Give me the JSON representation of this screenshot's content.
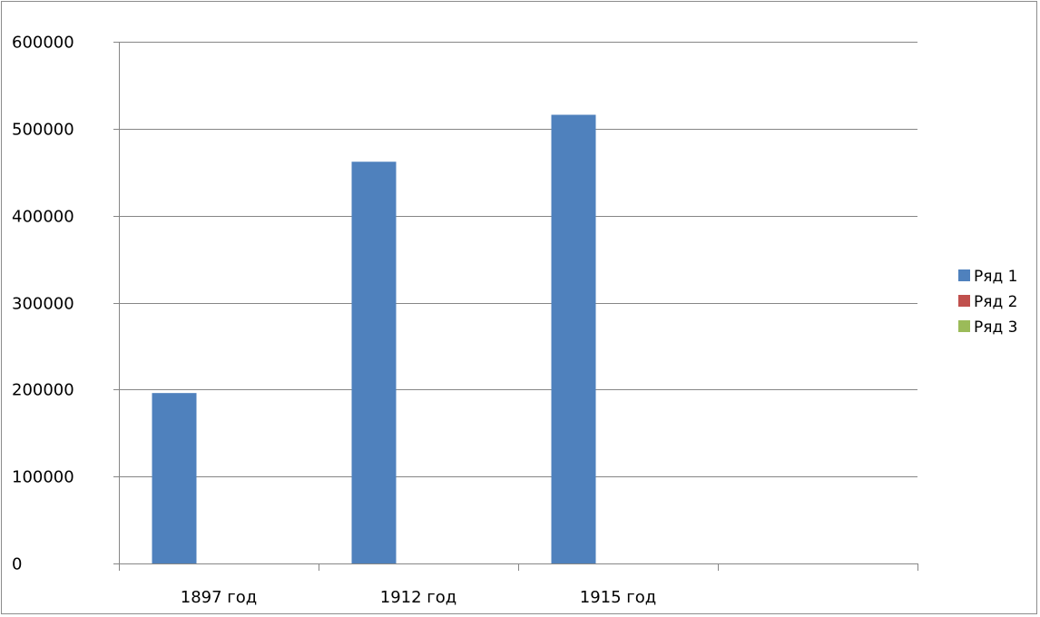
{
  "chart_data": {
    "type": "bar",
    "title": "",
    "xlabel": "",
    "ylabel": "",
    "categories": [
      "1897 год",
      "1912 год",
      "1915 год",
      ""
    ],
    "series": [
      {
        "name": "Ряд 1",
        "color": "#4f81bd",
        "values": [
          196000,
          462000,
          516000,
          null
        ]
      },
      {
        "name": "Ряд 2",
        "color": "#c0504d",
        "values": [
          null,
          null,
          null,
          null
        ]
      },
      {
        "name": "Ряд 3",
        "color": "#9bbb59",
        "values": [
          null,
          null,
          null,
          null
        ]
      }
    ],
    "ylim": [
      0,
      600000
    ],
    "yticks": [
      0,
      100000,
      200000,
      300000,
      400000,
      500000,
      600000
    ],
    "ytick_labels": [
      "0",
      "100000",
      "200000",
      "300000",
      "400000",
      "500000",
      "600000"
    ],
    "grid": true,
    "legend_position": "right"
  }
}
